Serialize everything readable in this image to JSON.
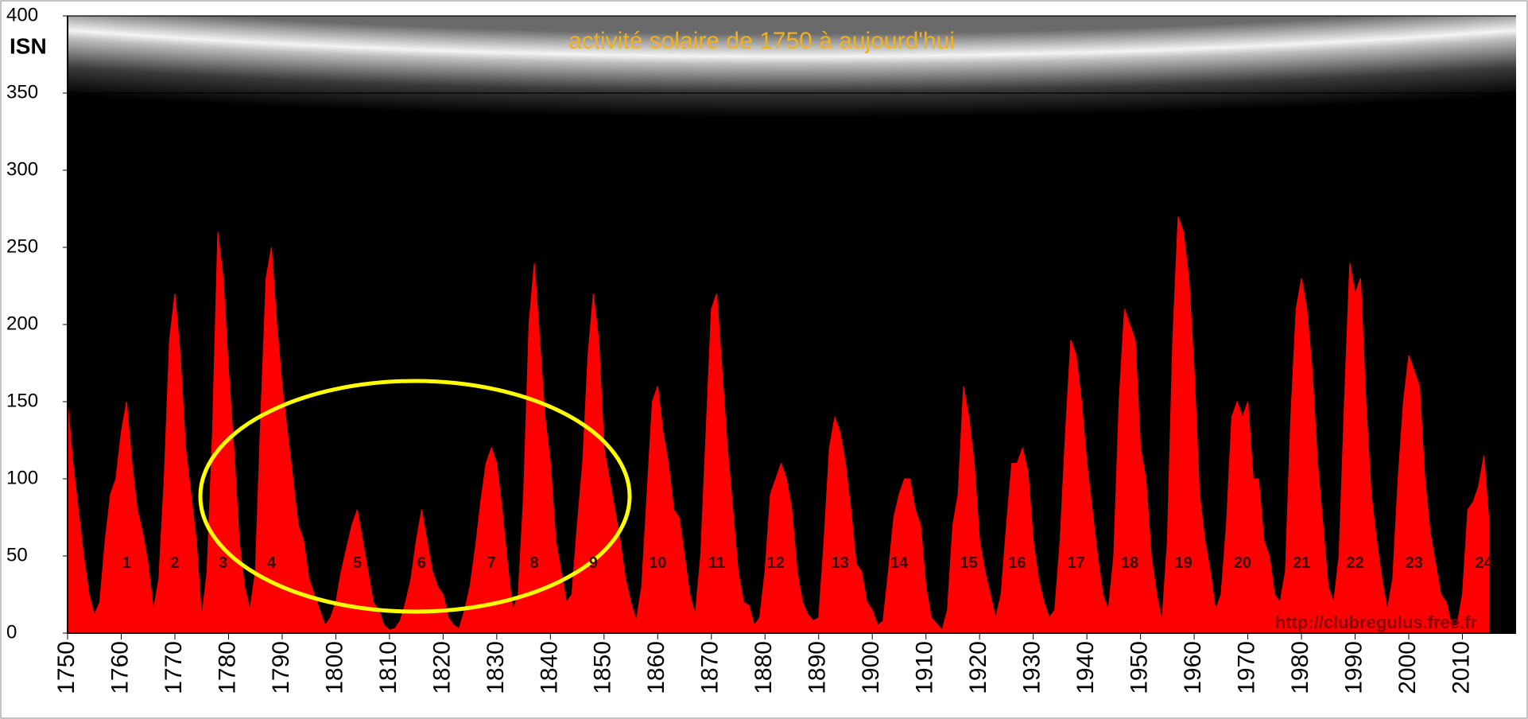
{
  "chart_data": {
    "type": "area",
    "title": "activité solaire de 1750 à aujourd'hui",
    "y_label": "ISN",
    "source": "http://clubregulus.free.fr",
    "color": "#ff0000",
    "x": [
      1750,
      1751,
      1752,
      1753,
      1754,
      1755,
      1756,
      1757,
      1758,
      1759,
      1760,
      1761,
      1762,
      1763,
      1764,
      1765,
      1766,
      1767,
      1768,
      1769,
      1770,
      1771,
      1772,
      1773,
      1774,
      1775,
      1776,
      1777,
      1778,
      1779,
      1780,
      1781,
      1782,
      1783,
      1784,
      1785,
      1786,
      1787,
      1788,
      1789,
      1790,
      1791,
      1792,
      1793,
      1794,
      1795,
      1796,
      1797,
      1798,
      1799,
      1800,
      1801,
      1802,
      1803,
      1804,
      1805,
      1806,
      1807,
      1808,
      1809,
      1810,
      1811,
      1812,
      1813,
      1814,
      1815,
      1816,
      1817,
      1818,
      1819,
      1820,
      1821,
      1822,
      1823,
      1824,
      1825,
      1826,
      1827,
      1828,
      1829,
      1830,
      1831,
      1832,
      1833,
      1834,
      1835,
      1836,
      1837,
      1838,
      1839,
      1840,
      1841,
      1842,
      1843,
      1844,
      1845,
      1846,
      1847,
      1848,
      1849,
      1850,
      1851,
      1852,
      1853,
      1854,
      1855,
      1856,
      1857,
      1858,
      1859,
      1860,
      1861,
      1862,
      1863,
      1864,
      1865,
      1866,
      1867,
      1868,
      1869,
      1870,
      1871,
      1872,
      1873,
      1874,
      1875,
      1876,
      1877,
      1878,
      1879,
      1880,
      1881,
      1882,
      1883,
      1884,
      1885,
      1886,
      1887,
      1888,
      1889,
      1890,
      1891,
      1892,
      1893,
      1894,
      1895,
      1896,
      1897,
      1898,
      1899,
      1900,
      1901,
      1902,
      1903,
      1904,
      1905,
      1906,
      1907,
      1908,
      1909,
      1910,
      1911,
      1912,
      1913,
      1914,
      1915,
      1916,
      1917,
      1918,
      1919,
      1920,
      1921,
      1922,
      1923,
      1924,
      1925,
      1926,
      1927,
      1928,
      1929,
      1930,
      1931,
      1932,
      1933,
      1934,
      1935,
      1936,
      1937,
      1938,
      1939,
      1940,
      1941,
      1942,
      1943,
      1944,
      1945,
      1946,
      1947,
      1948,
      1949,
      1950,
      1951,
      1952,
      1953,
      1954,
      1955,
      1956,
      1957,
      1958,
      1959,
      1960,
      1961,
      1962,
      1963,
      1964,
      1965,
      1966,
      1967,
      1968,
      1969,
      1970,
      1971,
      1972,
      1973,
      1974,
      1975,
      1976,
      1977,
      1978,
      1979,
      1980,
      1981,
      1982,
      1983,
      1984,
      1985,
      1986,
      1987,
      1988,
      1989,
      1990,
      1991,
      1992,
      1993,
      1994,
      1995,
      1996,
      1997,
      1998,
      1999,
      2000,
      2001,
      2002,
      2003,
      2004,
      2005,
      2006,
      2007,
      2008,
      2009,
      2010,
      2011,
      2012,
      2013,
      2014,
      2015
    ],
    "values": [
      150,
      110,
      80,
      50,
      25,
      12,
      20,
      60,
      90,
      100,
      130,
      150,
      110,
      80,
      65,
      45,
      15,
      35,
      100,
      190,
      220,
      180,
      120,
      90,
      60,
      10,
      40,
      130,
      260,
      230,
      170,
      120,
      60,
      30,
      15,
      40,
      140,
      230,
      250,
      200,
      160,
      130,
      100,
      70,
      60,
      35,
      25,
      15,
      5,
      10,
      20,
      40,
      55,
      70,
      80,
      60,
      40,
      20,
      15,
      5,
      2,
      3,
      8,
      20,
      35,
      60,
      80,
      60,
      40,
      30,
      25,
      10,
      5,
      3,
      15,
      30,
      55,
      85,
      110,
      120,
      110,
      80,
      45,
      15,
      25,
      90,
      200,
      240,
      190,
      140,
      110,
      60,
      40,
      20,
      25,
      70,
      110,
      180,
      220,
      190,
      120,
      100,
      80,
      60,
      35,
      20,
      8,
      30,
      90,
      150,
      160,
      130,
      110,
      80,
      75,
      50,
      25,
      12,
      50,
      130,
      210,
      220,
      170,
      120,
      80,
      40,
      20,
      18,
      5,
      10,
      40,
      90,
      100,
      110,
      100,
      80,
      40,
      20,
      12,
      8,
      10,
      60,
      120,
      140,
      130,
      110,
      80,
      45,
      40,
      20,
      15,
      5,
      8,
      40,
      75,
      90,
      100,
      100,
      80,
      70,
      30,
      10,
      6,
      2,
      15,
      70,
      90,
      160,
      140,
      110,
      60,
      40,
      25,
      10,
      25,
      70,
      110,
      110,
      120,
      105,
      60,
      35,
      20,
      10,
      15,
      60,
      130,
      190,
      180,
      150,
      110,
      80,
      50,
      25,
      15,
      50,
      150,
      210,
      200,
      190,
      120,
      100,
      50,
      25,
      8,
      60,
      190,
      270,
      260,
      230,
      170,
      90,
      60,
      40,
      15,
      25,
      70,
      140,
      150,
      140,
      150,
      100,
      100,
      60,
      50,
      25,
      20,
      40,
      140,
      210,
      230,
      210,
      170,
      110,
      70,
      30,
      20,
      50,
      150,
      240,
      220,
      230,
      150,
      90,
      60,
      35,
      15,
      35,
      100,
      150,
      180,
      170,
      160,
      100,
      65,
      45,
      25,
      20,
      5,
      5,
      25,
      80,
      85,
      95,
      115,
      70
    ],
    "xlim": [
      1750,
      2020
    ],
    "xticks": [
      1750,
      1760,
      1770,
      1780,
      1790,
      1800,
      1810,
      1820,
      1830,
      1840,
      1850,
      1860,
      1870,
      1880,
      1890,
      1900,
      1910,
      1920,
      1930,
      1940,
      1950,
      1960,
      1970,
      1980,
      1990,
      2000,
      2010
    ],
    "ylim": [
      0,
      400
    ],
    "yticks": [
      0,
      50,
      100,
      150,
      200,
      250,
      300,
      350,
      400
    ],
    "cycle_labels": [
      {
        "label": "1",
        "x": 1761
      },
      {
        "label": "2",
        "x": 1770
      },
      {
        "label": "3",
        "x": 1779
      },
      {
        "label": "4",
        "x": 1788
      },
      {
        "label": "5",
        "x": 1804
      },
      {
        "label": "6",
        "x": 1816
      },
      {
        "label": "7",
        "x": 1829
      },
      {
        "label": "8",
        "x": 1837
      },
      {
        "label": "9",
        "x": 1848
      },
      {
        "label": "10",
        "x": 1860
      },
      {
        "label": "11",
        "x": 1871
      },
      {
        "label": "12",
        "x": 1882
      },
      {
        "label": "13",
        "x": 1894
      },
      {
        "label": "14",
        "x": 1905
      },
      {
        "label": "15",
        "x": 1918
      },
      {
        "label": "16",
        "x": 1927
      },
      {
        "label": "17",
        "x": 1938
      },
      {
        "label": "18",
        "x": 1948
      },
      {
        "label": "19",
        "x": 1958
      },
      {
        "label": "20",
        "x": 1969
      },
      {
        "label": "21",
        "x": 1980
      },
      {
        "label": "22",
        "x": 1990
      },
      {
        "label": "23",
        "x": 2001
      },
      {
        "label": "24",
        "x": 2014
      }
    ],
    "cycle_label_y": 45
  }
}
